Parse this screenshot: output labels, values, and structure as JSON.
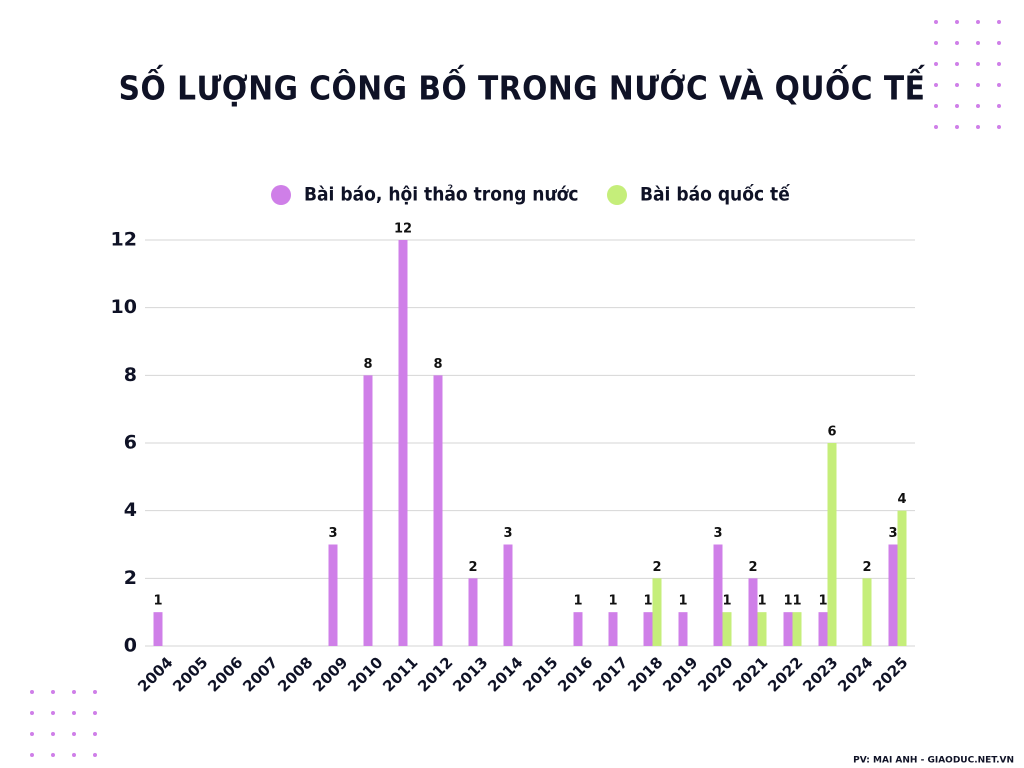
{
  "chart_data": {
    "type": "bar",
    "title": "SỐ LƯỢNG CÔNG BỐ TRONG NƯỚC VÀ QUỐC TẾ",
    "categories": [
      "2004",
      "2005",
      "2006",
      "2007",
      "2008",
      "2009",
      "2010",
      "2011",
      "2012",
      "2013",
      "2014",
      "2015",
      "2016",
      "2017",
      "2018",
      "2019",
      "2020",
      "2021",
      "2022",
      "2023",
      "2024",
      "2025"
    ],
    "series": [
      {
        "name": "Bài báo, hội thảo trong nước",
        "color": "#cf7fe8",
        "values": [
          1,
          null,
          null,
          null,
          null,
          3,
          8,
          12,
          8,
          2,
          3,
          null,
          1,
          1,
          1,
          1,
          3,
          2,
          1,
          1,
          null,
          3
        ]
      },
      {
        "name": "Bài báo quốc tế",
        "color": "#c5ee7a",
        "values": [
          null,
          null,
          null,
          null,
          null,
          null,
          null,
          null,
          null,
          null,
          null,
          null,
          null,
          null,
          2,
          null,
          1,
          1,
          1,
          6,
          2,
          4
        ]
      }
    ],
    "ylim": [
      0,
      12
    ],
    "yticks": [
      0,
      2,
      4,
      6,
      8,
      10,
      12
    ],
    "grid": true,
    "source": "PV: MAI ANH - GIAODUC.NET.VN"
  }
}
